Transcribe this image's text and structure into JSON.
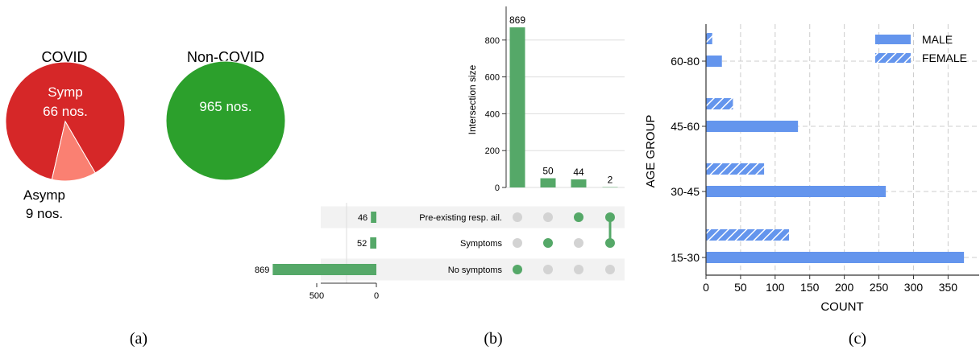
{
  "panel_labels": [
    "(a)",
    "(b)",
    "(c)"
  ],
  "colors": {
    "covid_red": "#d62728",
    "asymp_salmon": "#fa8072",
    "noncovid_green": "#2ca02c",
    "upset_green": "#55a868",
    "dot_grey": "#d3d3d3",
    "stripe_grey": "#f2f2f2",
    "male_blue": "#6495ed",
    "female_blue": "#6495ed"
  },
  "chart_data": [
    {
      "type": "pie",
      "title": "COVID",
      "slices": [
        {
          "label": "Symp",
          "value": 66,
          "text": "66 nos."
        },
        {
          "label": "Asymp",
          "value": 9,
          "text": "9 nos."
        }
      ]
    },
    {
      "type": "pie",
      "title": "Non-COVID",
      "slices": [
        {
          "label": "",
          "value": 965,
          "text": "965 nos."
        }
      ]
    },
    {
      "type": "bar",
      "subtype": "upset",
      "ylabel": "Intersection size",
      "ylim": [
        0,
        930
      ],
      "yticks": [
        0,
        200,
        400,
        600,
        800
      ],
      "intersections": [
        {
          "size": 869,
          "sets": [
            "No symptoms"
          ]
        },
        {
          "size": 50,
          "sets": [
            "Symptoms"
          ]
        },
        {
          "size": 44,
          "sets": [
            "Pre-existing resp. ail."
          ]
        },
        {
          "size": 2,
          "sets": [
            "Pre-existing resp. ail.",
            "Symptoms"
          ]
        }
      ],
      "sets": [
        {
          "name": "Pre-existing resp. ail.",
          "size": 46
        },
        {
          "name": "Symptoms",
          "size": 52
        },
        {
          "name": "No symptoms",
          "size": 869
        }
      ],
      "set_size_ticks": [
        500,
        0
      ],
      "set_size_max": 1000
    },
    {
      "type": "bar",
      "orientation": "horizontal",
      "xlabel": "COUNT",
      "ylabel": "AGE GROUP",
      "categories": [
        "15-30",
        "30-45",
        "45-60",
        "60-80"
      ],
      "series": [
        {
          "name": "MALE",
          "values": [
            373,
            260,
            133,
            23
          ]
        },
        {
          "name": "FEMALE",
          "values": [
            120,
            84,
            39,
            9
          ]
        }
      ],
      "xlim": [
        0,
        395
      ],
      "xticks": [
        0,
        50,
        100,
        150,
        200,
        250,
        300,
        350
      ],
      "grid": true,
      "legend": "top-right"
    }
  ]
}
